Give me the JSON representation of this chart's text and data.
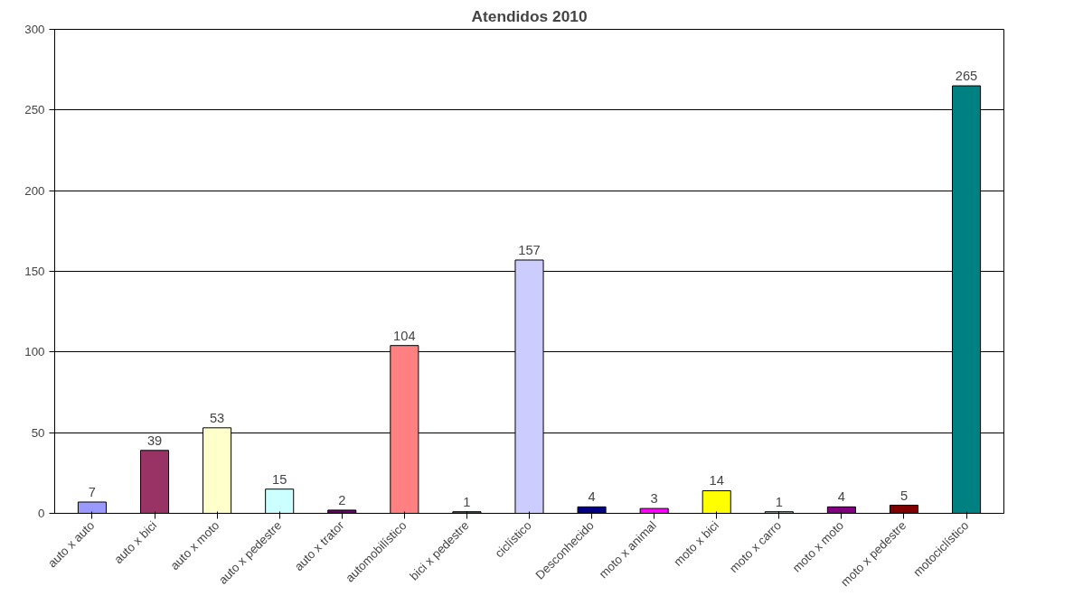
{
  "chart_data": {
    "type": "bar",
    "title": "Atendidos 2010",
    "categories": [
      "auto x auto",
      "auto x bici",
      "auto x moto",
      "auto x pedestre",
      "auto x trator",
      "automobilístico",
      "bici x pedestre",
      "ciclístico",
      "Desconhecido",
      "moto x animal",
      "moto x bici",
      "moto x carro",
      "moto x moto",
      "moto x pedestre",
      "motociclístico"
    ],
    "values": [
      7,
      39,
      53,
      15,
      2,
      104,
      1,
      157,
      4,
      3,
      14,
      1,
      4,
      5,
      265
    ],
    "colors": [
      "#9999ff",
      "#993366",
      "#ffffcc",
      "#ccffff",
      "#660066",
      "#ff8080",
      "#0066cc",
      "#ccccff",
      "#000080",
      "#ff00ff",
      "#ffff00",
      "#33cccc",
      "#800080",
      "#800000",
      "#008080"
    ],
    "ylim": [
      0,
      300
    ],
    "yticks": [
      0,
      50,
      100,
      150,
      200,
      250,
      300
    ],
    "grid": "y",
    "data_labels": true
  }
}
